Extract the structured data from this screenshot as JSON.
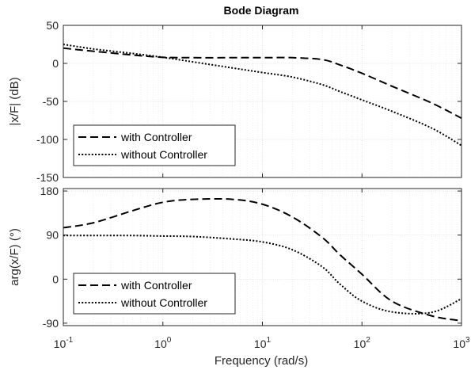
{
  "chart_data": {
    "type": "line",
    "title": "Bode Diagram",
    "xlabel": "Frequency  (rad/s)",
    "x_scale": "log",
    "xlim": [
      0.1,
      1000
    ],
    "x_ticks": [
      {
        "value": 0.1,
        "base": "10",
        "exp": "-1"
      },
      {
        "value": 1,
        "base": "10",
        "exp": "0"
      },
      {
        "value": 10,
        "base": "10",
        "exp": "1"
      },
      {
        "value": 100,
        "base": "10",
        "exp": "2"
      },
      {
        "value": 1000,
        "base": "10",
        "exp": "3"
      }
    ],
    "grid": true,
    "x": [
      0.1,
      0.2,
      0.5,
      1,
      2,
      5,
      10,
      20,
      40,
      60,
      100,
      200,
      500,
      1000
    ],
    "panels": [
      {
        "ylabel": "|x/F| (dB)",
        "ylim": [
          -150,
          50
        ],
        "yticks": [
          -150,
          -100,
          -50,
          0,
          50
        ],
        "ytick_labels": [
          "-150",
          "-100",
          "-50",
          "0",
          "50"
        ],
        "legend_position": "lower-left",
        "series": [
          {
            "name": "with Controller",
            "style": "dashed",
            "values": [
              20,
              16,
              11,
              8,
              7.5,
              7.5,
              7.5,
              7.5,
              5,
              -2,
              -13,
              -30,
              -52,
              -72
            ]
          },
          {
            "name": "without Controller",
            "style": "dotted",
            "values": [
              25,
              19,
              13,
              8,
              2,
              -6,
              -12,
              -18,
              -28,
              -37,
              -48,
              -63,
              -85,
              -108
            ]
          }
        ]
      },
      {
        "ylabel": "arg(x/F) (°)",
        "ylim": [
          -95,
          185
        ],
        "yticks": [
          -90,
          0,
          90,
          180
        ],
        "ytick_labels": [
          "-90",
          "0",
          "90",
          "180"
        ],
        "legend_position": "lower-left",
        "series": [
          {
            "name": "with Controller",
            "style": "dashed",
            "values": [
              105,
              115,
              140,
              157,
              163,
              163,
              153,
              127,
              85,
              50,
              10,
              -45,
              -75,
              -85
            ]
          },
          {
            "name": "without Controller",
            "style": "dotted",
            "values": [
              89,
              89,
              89,
              88,
              87,
              82,
              76,
              60,
              25,
              -10,
              -45,
              -67,
              -68,
              -40
            ]
          }
        ]
      }
    ]
  }
}
